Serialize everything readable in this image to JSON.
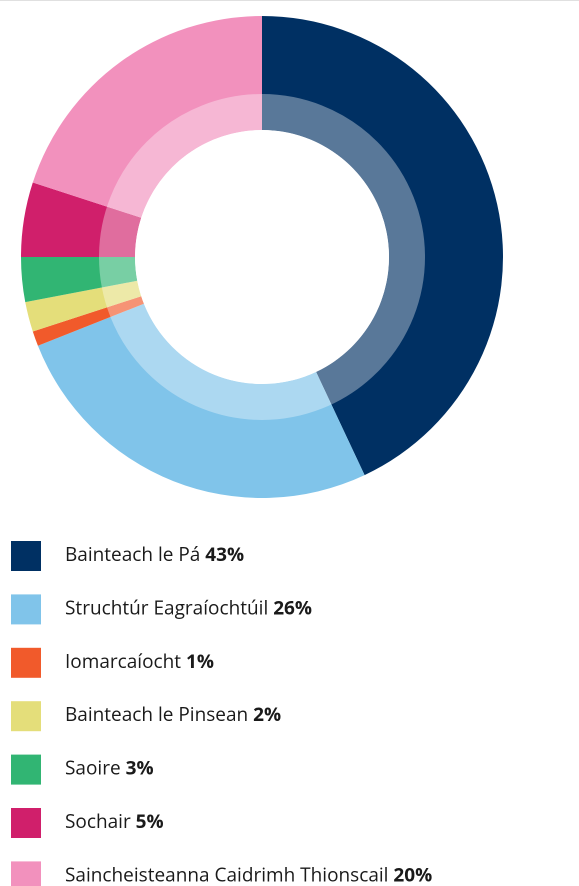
{
  "chart_data": {
    "type": "donut",
    "categories": [
      "Bainteach le Pá",
      "Struchtúr Eagraíochtúil",
      "Iomarcaíocht",
      "Bainteach le Pinsean",
      "Saoire",
      "Sochair",
      "Saincheisteanna Caidrimh Thionscail"
    ],
    "values": [
      43,
      26,
      1,
      2,
      3,
      5,
      20
    ],
    "value_labels": [
      "43%",
      "26%",
      "1%",
      "2%",
      "3%",
      "5%",
      "20%"
    ],
    "colors": [
      "#003063",
      "#80c4ea",
      "#f15a2b",
      "#e4de7a",
      "#31b573",
      "#d01f6b",
      "#f291bd"
    ]
  }
}
